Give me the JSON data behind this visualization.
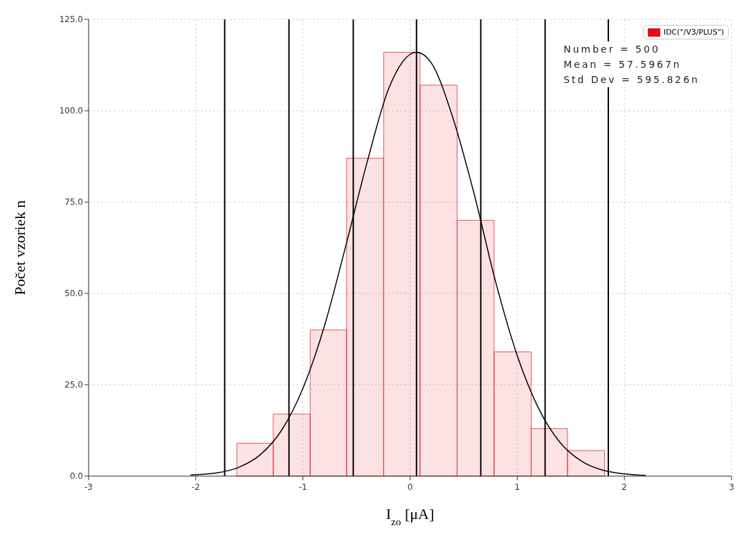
{
  "chart_data": {
    "type": "histogram",
    "xlabel": "I$_{zo}$ [μA]",
    "ylabel": "Počet vzoriek n",
    "bins": [
      -1.617,
      -1.277,
      -0.932,
      -0.592,
      -0.246,
      0.093,
      0.439,
      0.784,
      1.13,
      1.469,
      1.815
    ],
    "series": [
      {
        "name": "IDC(\"/V3/PLUS\")",
        "color": "#e3101a",
        "values": [
          9,
          17,
          40,
          87,
          116,
          107,
          70,
          34,
          13,
          7
        ]
      },
      {
        "type": "line",
        "color": "#000000",
        "x": [
          -2.05,
          -1.8,
          -1.6,
          -1.4,
          -1.2,
          -1.0,
          -0.8,
          -0.6,
          -0.4,
          -0.2,
          0.06,
          0.2,
          0.4,
          0.6,
          0.8,
          1.0,
          1.2,
          1.4,
          1.6,
          1.8,
          2.0,
          2.2
        ],
        "values": [
          0.3,
          0.9,
          2.4,
          5.8,
          12.5,
          24,
          41,
          63,
          86,
          106,
          116,
          113,
          98,
          77,
          53,
          33,
          18.5,
          9.2,
          4.1,
          1.6,
          0.6,
          0.2
        ]
      }
    ],
    "xlim": [
      -3,
      3
    ],
    "xticks": [
      -3,
      -2,
      -1,
      0,
      1,
      2,
      3
    ],
    "ylim": [
      0,
      125
    ],
    "yticks": [
      {
        "value": 0,
        "label": "0.0"
      },
      {
        "value": 25,
        "label": "25.0"
      },
      {
        "value": 50,
        "label": "50.0"
      },
      {
        "value": 75,
        "label": "75.0"
      },
      {
        "value": 100,
        "label": "100.0"
      },
      {
        "value": 125,
        "label": "125.0"
      }
    ],
    "ref_lines": [
      {
        "axis": "x",
        "value": -1.73,
        "color": "#000000"
      },
      {
        "axis": "x",
        "value": -1.13,
        "color": "#000000"
      },
      {
        "axis": "x",
        "value": -0.53,
        "color": "#000000"
      },
      {
        "axis": "x",
        "value": 0.06,
        "color": "#000000"
      },
      {
        "axis": "x",
        "value": 0.66,
        "color": "#000000"
      },
      {
        "axis": "x",
        "value": 1.26,
        "color": "#000000"
      },
      {
        "axis": "x",
        "value": 1.85,
        "color": "#000000"
      }
    ],
    "annotations": [
      "Number = 500",
      "Mean = 57.5967n",
      "Std Dev = 595.826n"
    ],
    "grid": true,
    "legend": "top right",
    "marker": "none"
  }
}
